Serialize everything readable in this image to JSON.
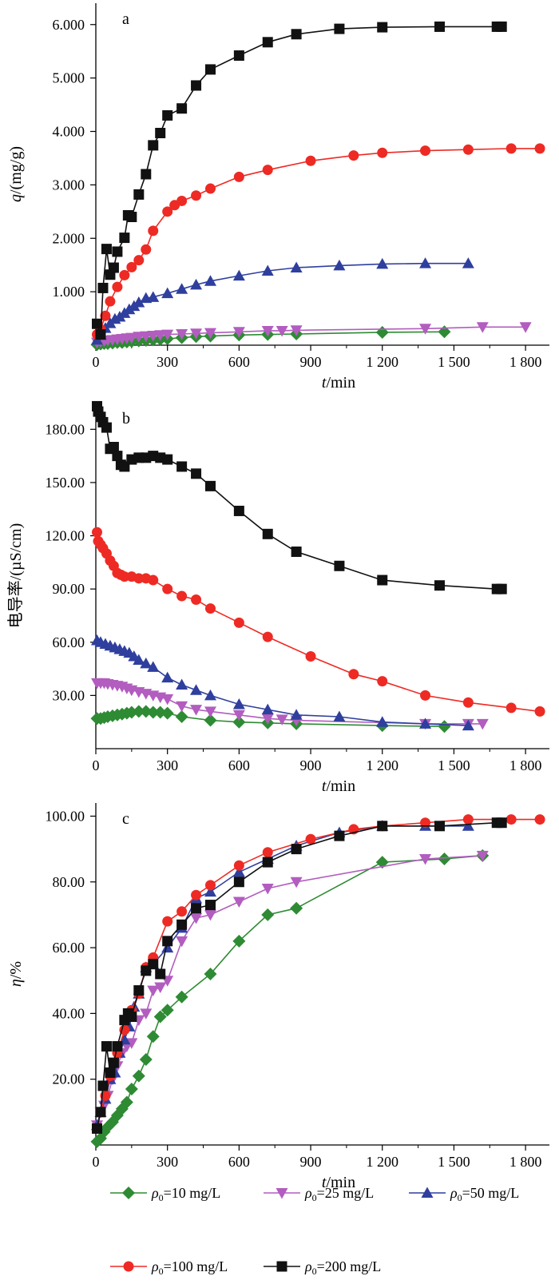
{
  "figure": {
    "legend": [
      {
        "key": "s10",
        "symbol": "ρ",
        "sub": "0",
        "label": "=10 mg/L",
        "color": "#2e8b34",
        "marker": "diamond"
      },
      {
        "key": "s25",
        "symbol": "ρ",
        "sub": "0",
        "label": "=25 mg/L",
        "color": "#b25dbf",
        "marker": "triangle-down"
      },
      {
        "key": "s50",
        "symbol": "ρ",
        "sub": "0",
        "label": "=50 mg/L",
        "color": "#2f3f9e",
        "marker": "triangle-up"
      },
      {
        "key": "s100",
        "symbol": "ρ",
        "sub": "0",
        "label": "=100 mg/L",
        "color": "#ee2a24",
        "marker": "circle"
      },
      {
        "key": "s200",
        "symbol": "ρ",
        "sub": "0",
        "label": "=200 mg/L",
        "color": "#111111",
        "marker": "square"
      }
    ]
  },
  "chart_data": [
    {
      "id": "a",
      "type": "line",
      "panel_label": "a",
      "xlabel_var": "t",
      "xlabel_unit": "/min",
      "ylabel_var": "q",
      "ylabel_unit": "/(mg/g)",
      "xlim": [
        0,
        1900
      ],
      "ylim": [
        0,
        6.4
      ],
      "xticks": [
        0,
        300,
        600,
        900,
        1200,
        1500,
        1800
      ],
      "xtick_labels": [
        "0",
        "300",
        "600",
        "900",
        "1 200",
        "1 500",
        "1 800"
      ],
      "yticks": [
        1,
        2,
        3,
        4,
        5,
        6
      ],
      "ytick_labels": [
        "1.000",
        "2.000",
        "3.000",
        "4.000",
        "5.000",
        "6.000"
      ],
      "series": [
        {
          "key": "s10",
          "x": [
            5,
            20,
            35,
            50,
            70,
            90,
            110,
            130,
            150,
            180,
            210,
            240,
            270,
            300,
            360,
            420,
            480,
            600,
            720,
            840,
            1200,
            1460
          ],
          "y": [
            0.01,
            0.02,
            0.03,
            0.03,
            0.04,
            0.05,
            0.05,
            0.06,
            0.07,
            0.08,
            0.09,
            0.1,
            0.11,
            0.12,
            0.14,
            0.16,
            0.17,
            0.19,
            0.2,
            0.21,
            0.24,
            0.25
          ]
        },
        {
          "key": "s25",
          "x": [
            5,
            20,
            35,
            50,
            70,
            90,
            110,
            130,
            150,
            180,
            210,
            240,
            270,
            300,
            360,
            420,
            480,
            600,
            720,
            780,
            840,
            1380,
            1620,
            1800
          ],
          "y": [
            0.05,
            0.07,
            0.08,
            0.09,
            0.1,
            0.11,
            0.12,
            0.13,
            0.14,
            0.16,
            0.17,
            0.18,
            0.19,
            0.2,
            0.21,
            0.22,
            0.23,
            0.25,
            0.27,
            0.27,
            0.28,
            0.31,
            0.34,
            0.34
          ]
        },
        {
          "key": "s50",
          "x": [
            5,
            20,
            40,
            60,
            80,
            100,
            120,
            140,
            160,
            180,
            210,
            240,
            300,
            360,
            420,
            480,
            600,
            720,
            840,
            1020,
            1200,
            1380,
            1560
          ],
          "y": [
            0.1,
            0.19,
            0.32,
            0.41,
            0.49,
            0.53,
            0.6,
            0.67,
            0.73,
            0.8,
            0.88,
            0.9,
            0.97,
            1.05,
            1.13,
            1.2,
            1.3,
            1.39,
            1.45,
            1.49,
            1.52,
            1.53,
            1.53
          ]
        },
        {
          "key": "s100",
          "x": [
            5,
            20,
            40,
            60,
            90,
            120,
            150,
            180,
            210,
            240,
            300,
            330,
            360,
            420,
            480,
            600,
            720,
            900,
            1080,
            1200,
            1380,
            1560,
            1740,
            1860
          ],
          "y": [
            0.2,
            0.3,
            0.55,
            0.82,
            1.09,
            1.31,
            1.46,
            1.59,
            1.79,
            2.14,
            2.5,
            2.62,
            2.7,
            2.8,
            2.93,
            3.15,
            3.28,
            3.45,
            3.55,
            3.6,
            3.64,
            3.66,
            3.68,
            3.68
          ]
        },
        {
          "key": "s200",
          "x": [
            5,
            20,
            30,
            45,
            60,
            75,
            90,
            120,
            135,
            150,
            180,
            210,
            240,
            270,
            300,
            360,
            420,
            480,
            600,
            720,
            840,
            1020,
            1200,
            1440,
            1680,
            1700
          ],
          "y": [
            0.4,
            0.2,
            1.07,
            1.8,
            1.32,
            1.45,
            1.75,
            2.01,
            2.43,
            2.4,
            2.82,
            3.2,
            3.74,
            3.97,
            4.3,
            4.43,
            4.86,
            5.16,
            5.42,
            5.67,
            5.82,
            5.92,
            5.95,
            5.96,
            5.96,
            5.96
          ]
        }
      ]
    },
    {
      "id": "b",
      "type": "line",
      "panel_label": "b",
      "xlabel_var": "t",
      "xlabel_unit": "/min",
      "ylabel_var": "电导率",
      "ylabel_unit": "/(µS/cm)",
      "xlim": [
        0,
        1900
      ],
      "ylim": [
        0,
        195
      ],
      "xticks": [
        0,
        300,
        600,
        900,
        1200,
        1500,
        1800
      ],
      "xtick_labels": [
        "0",
        "300",
        "600",
        "900",
        "1 200",
        "1 500",
        "1 800"
      ],
      "yticks": [
        30,
        60,
        90,
        120,
        150,
        180
      ],
      "ytick_labels": [
        "30.00",
        "60.00",
        "90.00",
        "120.00",
        "150.00",
        "180.00"
      ],
      "series": [
        {
          "key": "s10",
          "x": [
            5,
            20,
            35,
            50,
            70,
            90,
            110,
            130,
            150,
            180,
            210,
            240,
            270,
            300,
            360,
            480,
            600,
            720,
            840,
            1200,
            1460
          ],
          "y": [
            17,
            17,
            17.5,
            18,
            18.5,
            19,
            19.5,
            20,
            20.5,
            21,
            21,
            20.5,
            20.5,
            20,
            18,
            16,
            15,
            14.5,
            14,
            13,
            12.5
          ]
        },
        {
          "key": "s25",
          "x": [
            5,
            20,
            35,
            50,
            70,
            90,
            110,
            130,
            150,
            180,
            210,
            240,
            270,
            300,
            360,
            420,
            480,
            600,
            720,
            780,
            840,
            1380,
            1560,
            1620
          ],
          "y": [
            37,
            37,
            37,
            36.5,
            36,
            35.5,
            35,
            34,
            33,
            32,
            31,
            30,
            29,
            28,
            24,
            22,
            21,
            19,
            17,
            16.5,
            16,
            14,
            14,
            14
          ]
        },
        {
          "key": "s50",
          "x": [
            5,
            20,
            40,
            60,
            80,
            100,
            120,
            140,
            160,
            180,
            210,
            240,
            300,
            360,
            420,
            480,
            600,
            720,
            840,
            1020,
            1200,
            1380,
            1560
          ],
          "y": [
            61,
            60,
            59,
            58,
            57,
            56,
            55,
            54,
            52,
            50,
            48,
            46,
            40,
            36,
            33,
            30,
            25,
            22,
            19,
            18,
            15,
            14,
            13
          ]
        },
        {
          "key": "s100",
          "x": [
            5,
            10,
            20,
            30,
            45,
            60,
            75,
            90,
            105,
            120,
            150,
            180,
            210,
            240,
            300,
            360,
            420,
            480,
            600,
            720,
            900,
            1080,
            1200,
            1380,
            1560,
            1740,
            1860
          ],
          "y": [
            122,
            117,
            115,
            113,
            110,
            106,
            103,
            99,
            98,
            97,
            97,
            96,
            96,
            95,
            90,
            86,
            84,
            79,
            71,
            63,
            52,
            42,
            38,
            30,
            26,
            23,
            21
          ]
        },
        {
          "key": "s200",
          "x": [
            5,
            10,
            20,
            30,
            45,
            60,
            75,
            90,
            105,
            120,
            150,
            180,
            210,
            240,
            270,
            300,
            360,
            420,
            480,
            600,
            720,
            840,
            1020,
            1200,
            1440,
            1680,
            1700
          ],
          "y": [
            193,
            190,
            187,
            184,
            181,
            169,
            170,
            165,
            160,
            159,
            163,
            164,
            164,
            165,
            164,
            163,
            159,
            155,
            148,
            134,
            121,
            111,
            103,
            95,
            92,
            90,
            90
          ]
        }
      ]
    },
    {
      "id": "c",
      "type": "line",
      "panel_label": "c",
      "xlabel_var": "t",
      "xlabel_unit": "/min",
      "ylabel_var": "η",
      "ylabel_unit": "/%",
      "xlim": [
        0,
        1900
      ],
      "ylim": [
        0,
        104
      ],
      "xticks": [
        0,
        300,
        600,
        900,
        1200,
        1500,
        1800
      ],
      "xtick_labels": [
        "0",
        "300",
        "600",
        "900",
        "1 200",
        "1 500",
        "1 800"
      ],
      "yticks": [
        20,
        40,
        60,
        80,
        100
      ],
      "ytick_labels": [
        "20.00",
        "40.00",
        "60.00",
        "80.00",
        "100.00"
      ],
      "series": [
        {
          "key": "s10",
          "x": [
            5,
            20,
            35,
            50,
            70,
            90,
            110,
            130,
            150,
            180,
            210,
            240,
            270,
            300,
            360,
            480,
            600,
            720,
            840,
            1200,
            1460,
            1620
          ],
          "y": [
            1,
            2,
            4,
            5.5,
            7,
            9,
            11,
            13,
            17,
            21,
            26,
            33,
            39,
            41,
            45,
            52,
            62,
            70,
            72,
            86,
            87,
            88
          ]
        },
        {
          "key": "s25",
          "x": [
            5,
            20,
            35,
            50,
            70,
            90,
            110,
            130,
            150,
            180,
            210,
            240,
            270,
            300,
            360,
            420,
            480,
            600,
            720,
            840,
            1380,
            1620
          ],
          "y": [
            6,
            10,
            12,
            15,
            20,
            24,
            28,
            30,
            31,
            38,
            40,
            47,
            48,
            50,
            62,
            69,
            70,
            74,
            78,
            80,
            87,
            88
          ]
        },
        {
          "key": "s50",
          "x": [
            5,
            20,
            40,
            60,
            80,
            100,
            120,
            140,
            160,
            180,
            210,
            240,
            300,
            360,
            420,
            480,
            600,
            720,
            840,
            1020,
            1200,
            1380,
            1560
          ],
          "y": [
            6,
            10,
            14,
            20,
            22,
            28,
            32,
            36,
            42,
            46,
            54,
            55,
            60,
            66,
            75,
            77,
            83,
            87,
            91,
            95,
            97,
            97,
            97
          ]
        },
        {
          "key": "s100",
          "x": [
            5,
            20,
            40,
            60,
            90,
            120,
            150,
            180,
            210,
            240,
            300,
            360,
            420,
            480,
            600,
            720,
            900,
            1080,
            1200,
            1380,
            1560,
            1740,
            1860
          ],
          "y": [
            5,
            10,
            15,
            21,
            28,
            35,
            41,
            46,
            54,
            57,
            68,
            71,
            76,
            79,
            85,
            89,
            93,
            96,
            97,
            98,
            99,
            99,
            99
          ]
        },
        {
          "key": "s200",
          "x": [
            5,
            20,
            30,
            45,
            60,
            75,
            90,
            120,
            135,
            150,
            180,
            210,
            240,
            270,
            300,
            360,
            420,
            480,
            600,
            720,
            840,
            1020,
            1200,
            1440,
            1680,
            1700
          ],
          "y": [
            5,
            10,
            18,
            30,
            22,
            25,
            30,
            38,
            40,
            39,
            47,
            53,
            55,
            52,
            62,
            67,
            72,
            73,
            80,
            86,
            90,
            94,
            97,
            97,
            98,
            98
          ]
        }
      ]
    }
  ]
}
